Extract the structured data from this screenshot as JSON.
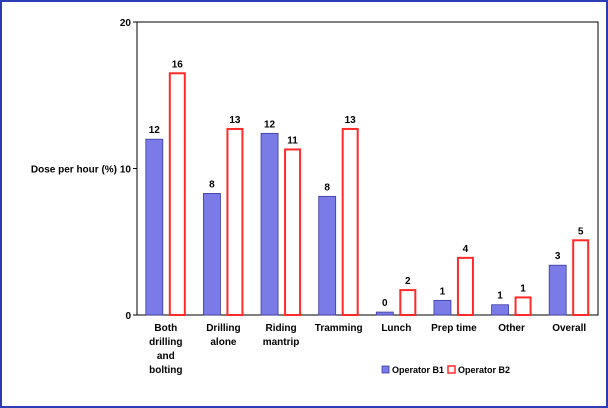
{
  "chart_data": {
    "type": "bar",
    "ylabel": "Dose per hour (%)",
    "ylim": [
      0,
      20
    ],
    "yticks": [
      "0",
      "10",
      "20"
    ],
    "grid": true,
    "legend_position": "bottom",
    "categories": [
      [
        "Both",
        "drilling",
        "and",
        "bolting"
      ],
      [
        "Drilling",
        "alone"
      ],
      [
        "Riding",
        "mantrip"
      ],
      [
        "Tramming"
      ],
      [
        "Lunch"
      ],
      [
        "Prep time"
      ],
      [
        "Other"
      ],
      [
        "Overall"
      ]
    ],
    "series": [
      {
        "name": "Operator B1",
        "color": "#7b7be8",
        "values": [
          12,
          8.3,
          12.4,
          8.1,
          0.2,
          1.0,
          0.7,
          3.4
        ],
        "labels": [
          "12",
          "8",
          "12",
          "8",
          "0",
          "1",
          "1",
          "3"
        ]
      },
      {
        "name": "Operator B2",
        "color": "#ff2a2a",
        "values": [
          16.5,
          12.7,
          11.3,
          12.7,
          1.7,
          3.9,
          1.2,
          5.1
        ],
        "labels": [
          "16",
          "13",
          "11",
          "13",
          "2",
          "4",
          "1",
          "5"
        ]
      }
    ]
  }
}
